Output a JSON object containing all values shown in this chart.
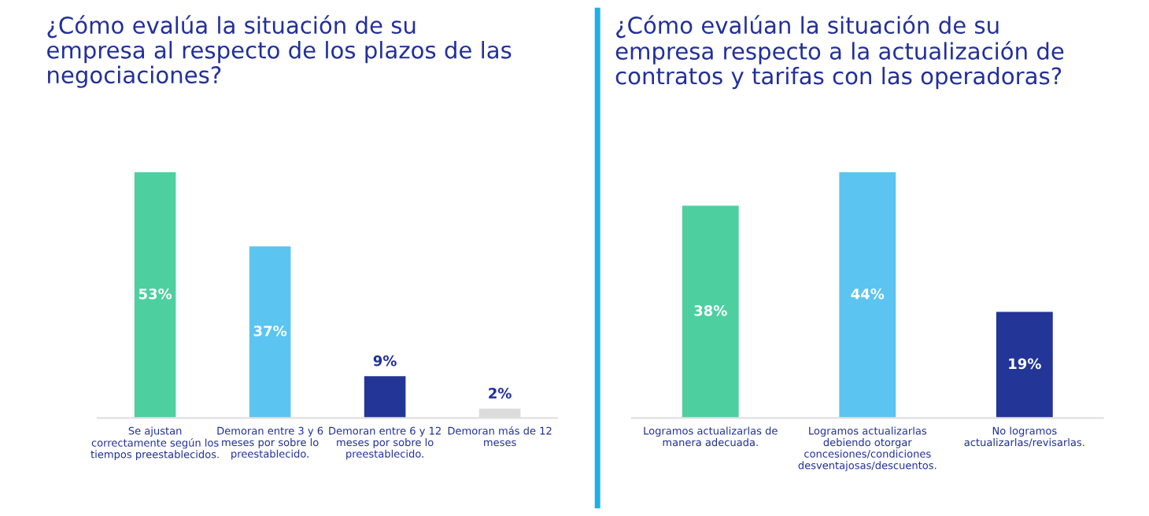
{
  "chart_data": [
    {
      "type": "bar",
      "title": "¿Cómo evalúa la situación de su\nempresa al respecto de los plazos de las\nnegociaciones?",
      "categories": [
        "Se ajustan\ncorrectamente según los\ntiempos preestablecidos.",
        "Demoran entre 3 y 6\nmeses por sobre lo\npreestablecido.",
        "Demoran entre 6 y 12\nmeses por sobre lo\npreestablecido.",
        "Demoran más de 12\nmeses"
      ],
      "values": [
        53,
        37,
        9,
        2
      ],
      "colors": [
        "#4ecfa0",
        "#5bc4f0",
        "#233596",
        "#dcdcdc"
      ],
      "value_labels": [
        "53%",
        "37%",
        "9%",
        "2%"
      ]
    },
    {
      "type": "bar",
      "title": "¿Cómo evalúan la situación de su\nempresa respecto a la actualización de\ncontratos y tarifas con las operadoras?",
      "categories": [
        "Logramos actualizarlas de\nmanera adecuada.",
        "Logramos actualizarlas\ndebiendo otorgar\nconcesiones/condiciones\ndesventajosas/descuentos.",
        "No logramos\nactualizarlas/revisarlas."
      ],
      "values": [
        38,
        44,
        19
      ],
      "colors": [
        "#4ecfa0",
        "#5bc4f0",
        "#233596"
      ],
      "value_labels": [
        "38%",
        "44%",
        "19%"
      ]
    }
  ]
}
